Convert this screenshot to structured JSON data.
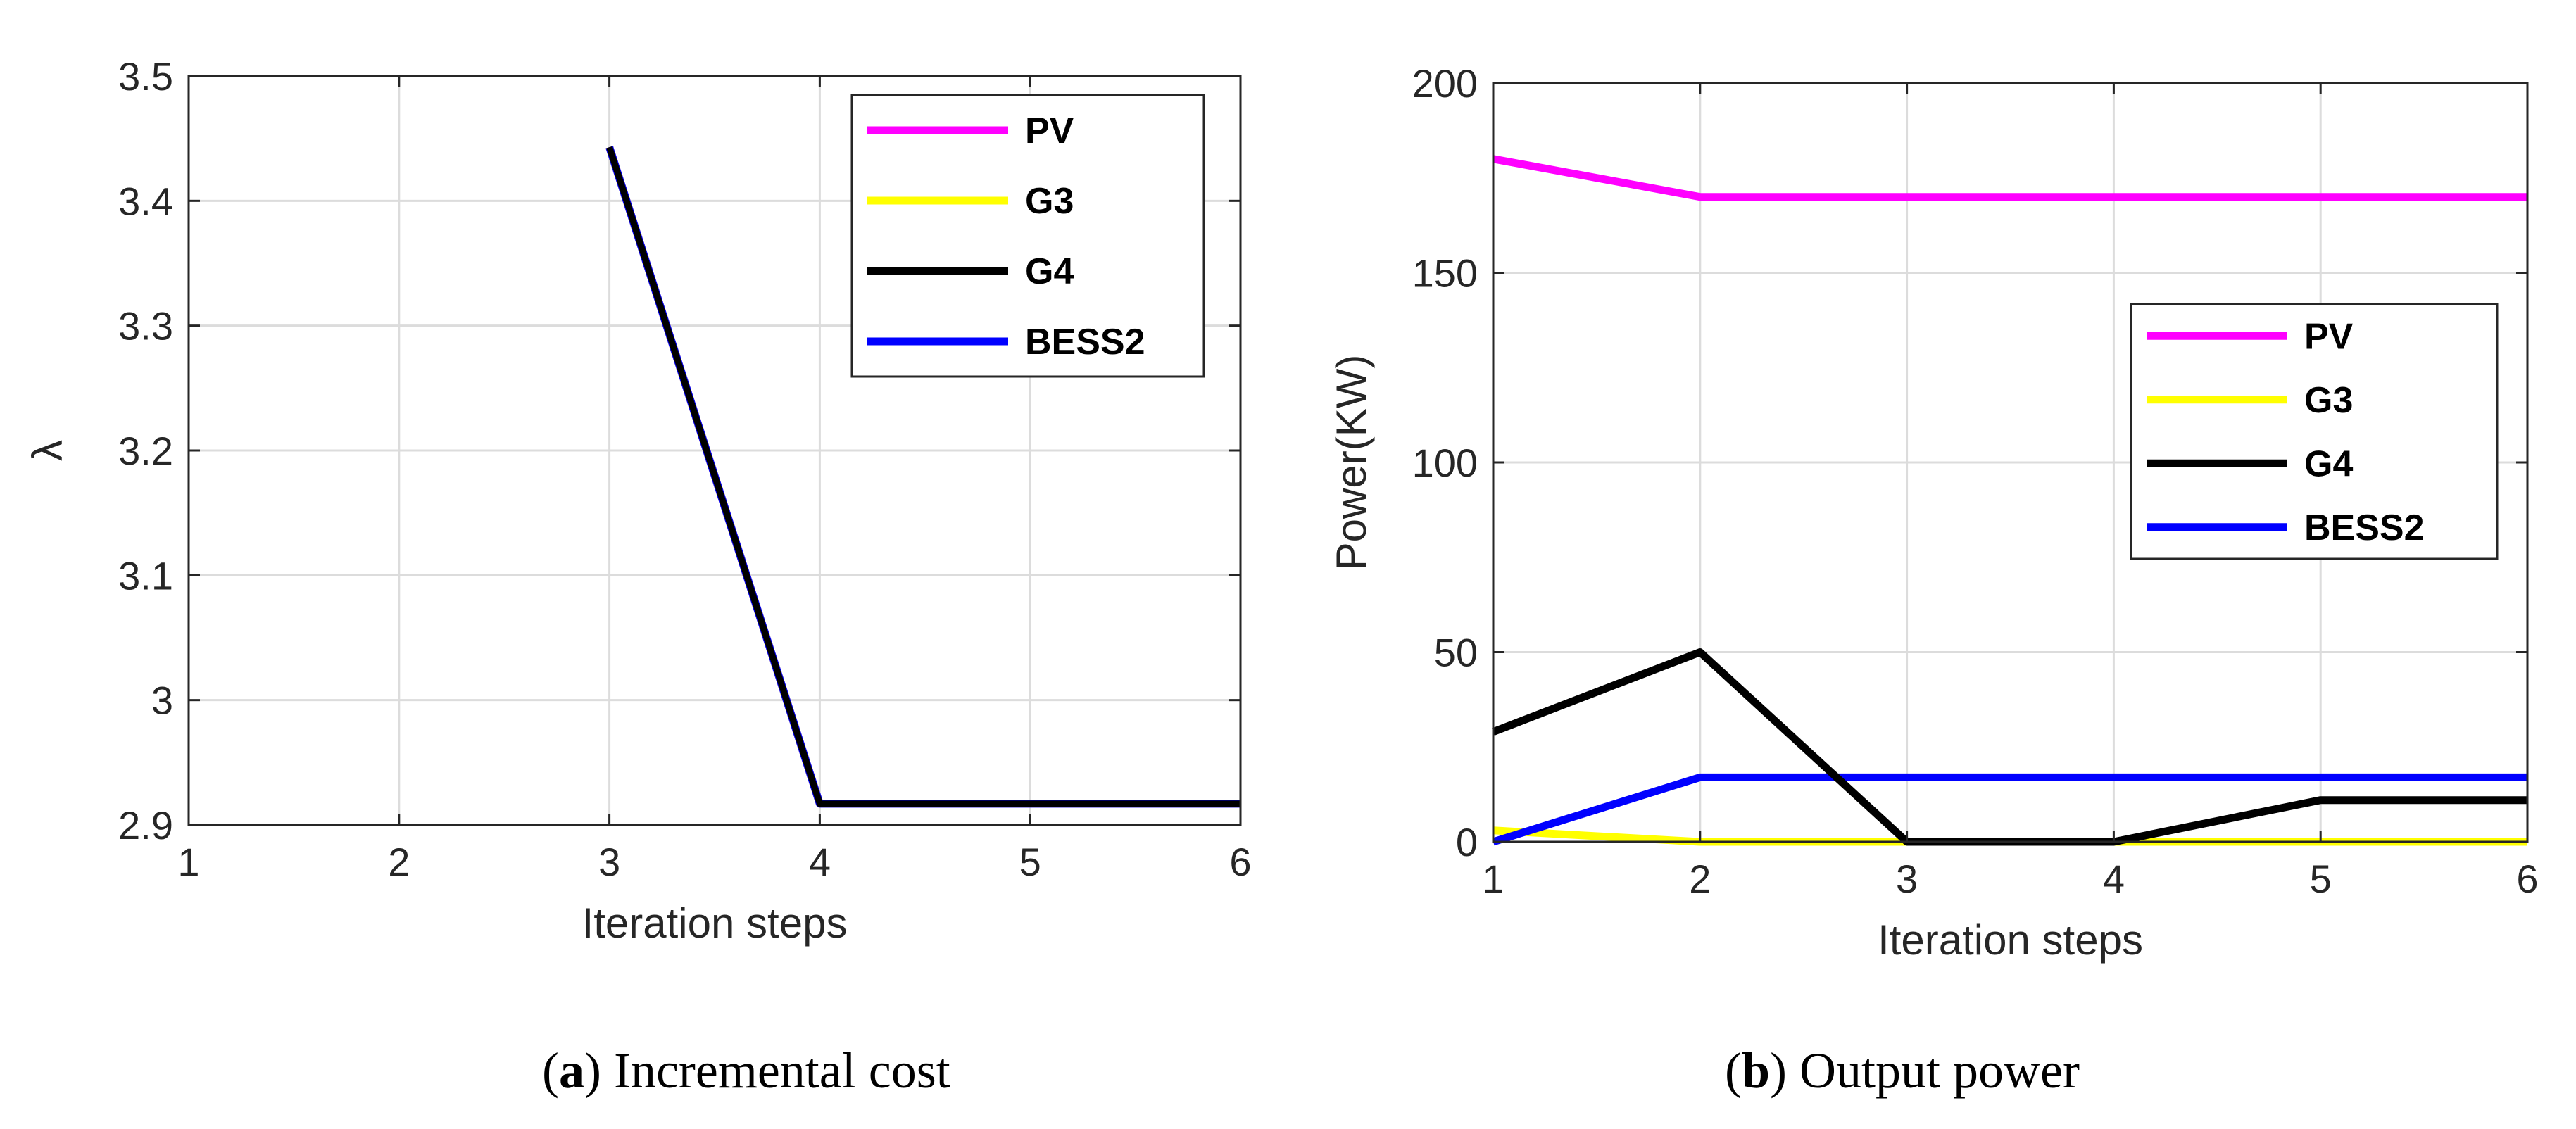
{
  "chart_data": [
    {
      "type": "line",
      "caption_letter": "a",
      "caption_text": "Incremental cost",
      "xlabel": "Iteration steps",
      "ylabel": "λ",
      "xlim": [
        1,
        6
      ],
      "ylim": [
        2.9,
        3.5
      ],
      "xticks": [
        1,
        2,
        3,
        4,
        5,
        6
      ],
      "yticks": [
        2.9,
        3,
        3.1,
        3.2,
        3.3,
        3.4,
        3.5
      ],
      "ytick_labels": [
        "2.9",
        "3",
        "3.1",
        "3.2",
        "3.3",
        "3.4",
        "3.5"
      ],
      "grid": true,
      "legend_position": "top-right",
      "series": [
        {
          "name": "PV",
          "color": "#ff00ff",
          "x": [
            3,
            4,
            5,
            6
          ],
          "values": [
            3.443,
            2.917,
            2.917,
            2.917
          ]
        },
        {
          "name": "G3",
          "color": "#ffff00",
          "x": [
            3,
            4,
            5,
            6
          ],
          "values": [
            3.443,
            2.917,
            2.917,
            2.917
          ]
        },
        {
          "name": "G4",
          "color": "#000000",
          "x": [
            3,
            4,
            5,
            6
          ],
          "values": [
            3.443,
            2.917,
            2.917,
            2.917
          ]
        },
        {
          "name": "BESS2",
          "color": "#0000ff",
          "x": [
            3,
            4,
            5,
            6
          ],
          "values": [
            3.443,
            2.917,
            2.917,
            2.917
          ]
        }
      ]
    },
    {
      "type": "line",
      "caption_letter": "b",
      "caption_text": "Output power",
      "xlabel": "Iteration steps",
      "ylabel": "Power(KW)",
      "xlim": [
        1,
        6
      ],
      "ylim": [
        0,
        200
      ],
      "xticks": [
        1,
        2,
        3,
        4,
        5,
        6
      ],
      "yticks": [
        0,
        50,
        100,
        150,
        200
      ],
      "ytick_labels": [
        "0",
        "50",
        "100",
        "150",
        "200"
      ],
      "grid": true,
      "legend_position": "center-right",
      "series": [
        {
          "name": "PV",
          "color": "#ff00ff",
          "x": [
            1,
            2,
            3,
            4,
            5,
            6
          ],
          "values": [
            180,
            170,
            170,
            170,
            170,
            170
          ]
        },
        {
          "name": "G3",
          "color": "#ffff00",
          "x": [
            1,
            2,
            3,
            4,
            5,
            6
          ],
          "values": [
            3,
            0,
            0,
            0,
            0,
            0
          ]
        },
        {
          "name": "G4",
          "color": "#000000",
          "x": [
            1,
            2,
            3,
            4,
            5,
            6
          ],
          "values": [
            29,
            50,
            0,
            0,
            11,
            11
          ]
        },
        {
          "name": "BESS2",
          "color": "#0000ff",
          "x": [
            1,
            2,
            3,
            4,
            5,
            6
          ],
          "values": [
            0,
            17,
            17,
            17,
            17,
            17
          ]
        }
      ]
    }
  ]
}
